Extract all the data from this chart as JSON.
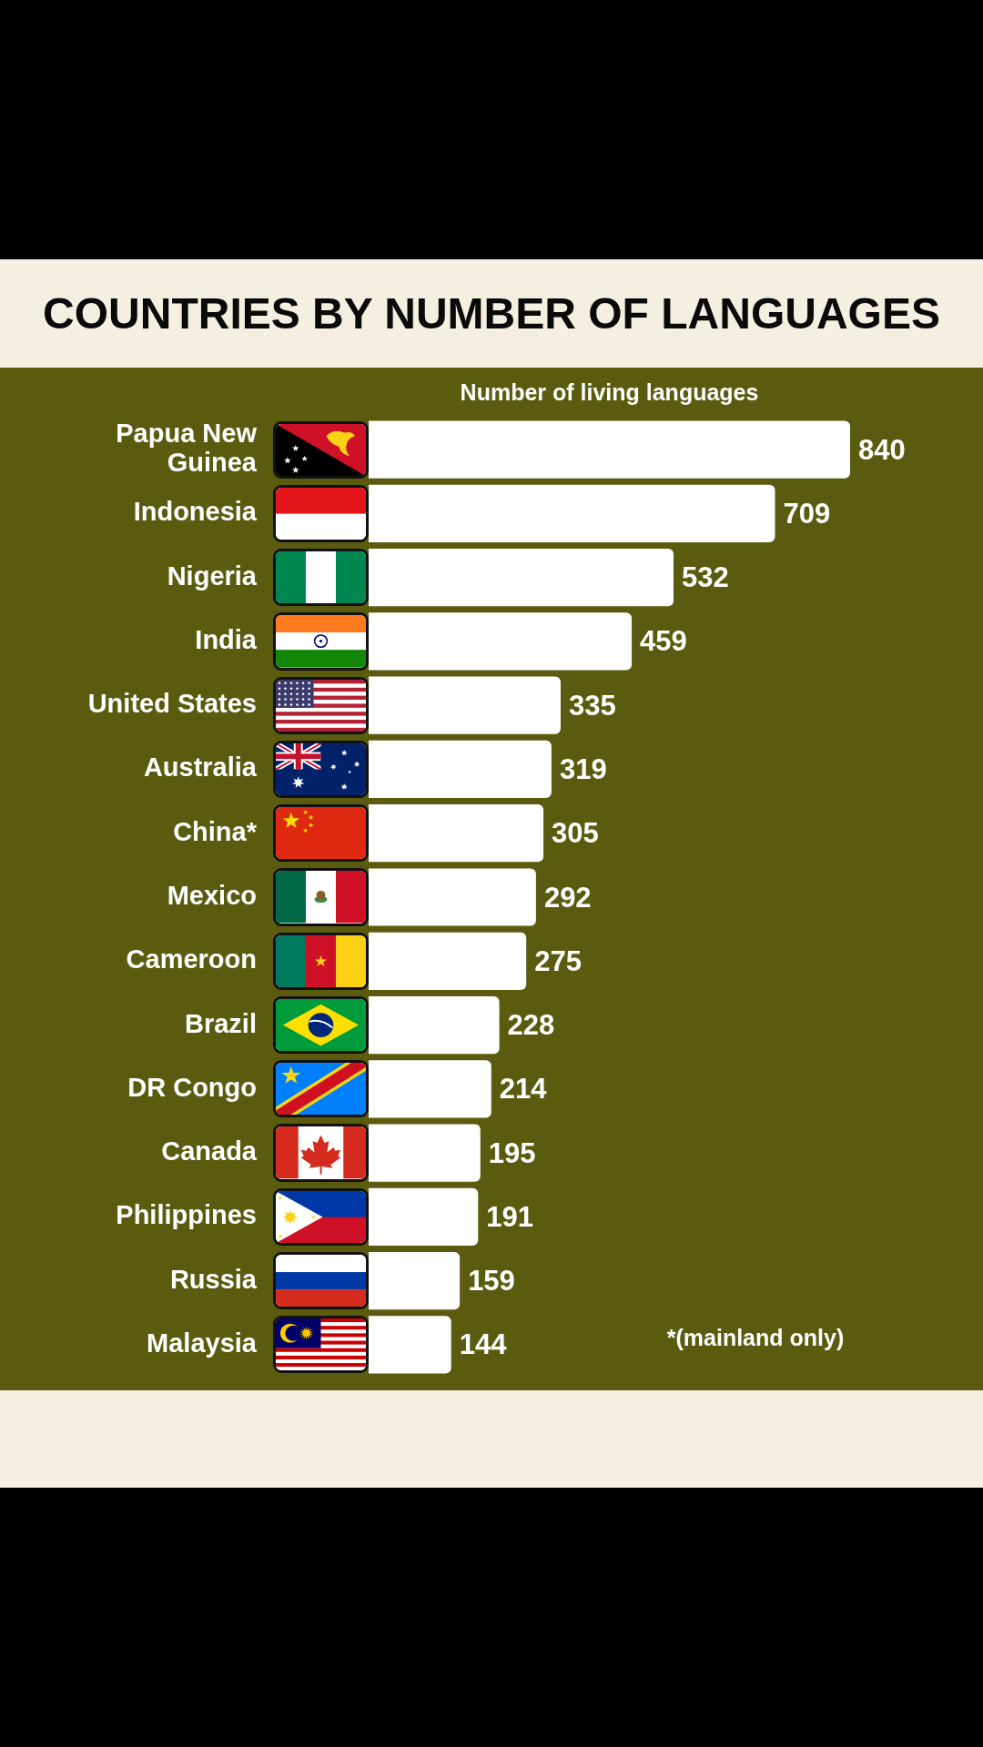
{
  "chart_data": {
    "type": "bar",
    "orientation": "horizontal",
    "title": "COUNTRIES BY NUMBER OF LANGUAGES",
    "xlabel": "Number of living languages",
    "categories": [
      "Papua New Guinea",
      "Indonesia",
      "Nigeria",
      "India",
      "United States",
      "Australia",
      "China*",
      "Mexico",
      "Cameroon",
      "Brazil",
      "DR Congo",
      "Canada",
      "Philippines",
      "Russia",
      "Malaysia"
    ],
    "values": [
      840,
      709,
      532,
      459,
      335,
      319,
      305,
      292,
      275,
      228,
      214,
      195,
      191,
      159,
      144
    ],
    "color": "#ffffff",
    "data_labels": true,
    "annotations": [
      "*(mainland only)"
    ]
  }
}
